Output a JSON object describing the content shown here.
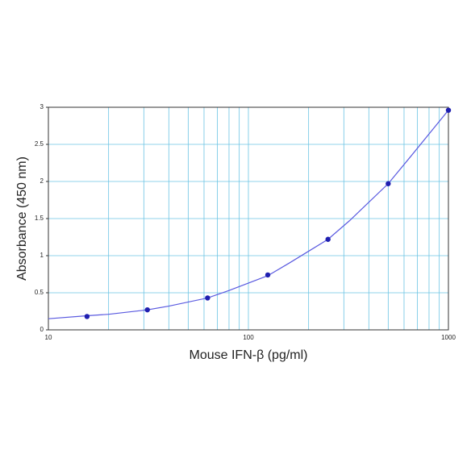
{
  "chart_data": {
    "type": "scatter",
    "x_label": "Mouse IFN-β (pg/ml)",
    "y_label": "Absorbance (450 nm)",
    "x_log": true,
    "grid": true,
    "xlim": [
      10,
      1000
    ],
    "ylim": [
      0,
      3
    ],
    "xticks": [
      10,
      100,
      1000
    ],
    "xminorticks": [
      20,
      30,
      40,
      50,
      60,
      70,
      80,
      90,
      200,
      300,
      400,
      500,
      600,
      700,
      800,
      900
    ],
    "yticks": [
      0,
      0.5,
      1,
      1.5,
      2,
      2.5,
      3
    ],
    "grid_color": "#6cc4e4",
    "series": [
      {
        "type": "scatter",
        "color": "#1f1fb0",
        "x": [
          15.6,
          31.25,
          62.5,
          125,
          250,
          500,
          1000
        ],
        "values": [
          0.18,
          0.27,
          0.43,
          0.74,
          1.22,
          1.97,
          2.96
        ]
      },
      {
        "type": "line",
        "color": "#5a5ae0",
        "x": [
          10,
          15.6,
          20,
          31.25,
          40,
          62.5,
          80,
          125,
          160,
          250,
          320,
          500,
          640,
          1000
        ],
        "values": [
          0.15,
          0.19,
          0.21,
          0.27,
          0.32,
          0.43,
          0.53,
          0.73,
          0.9,
          1.22,
          1.47,
          1.97,
          2.32,
          2.96
        ]
      }
    ]
  }
}
